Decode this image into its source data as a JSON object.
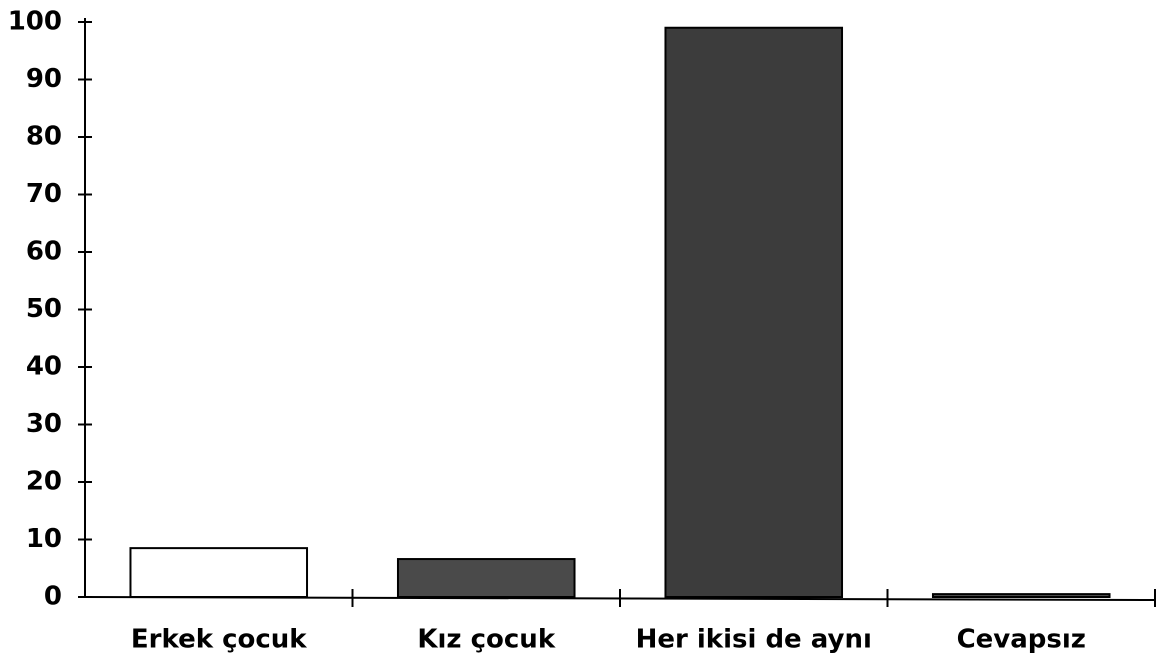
{
  "chart_data": {
    "type": "bar",
    "categories": [
      "Erkek çocuk",
      "Kız çocuk",
      "Her ikisi de aynı",
      "Cevapsız"
    ],
    "values": [
      8.5,
      6.6,
      99,
      0.5
    ],
    "colors": [
      "#ffffff",
      "#4a4a4a",
      "#3c3c3c",
      "#555555"
    ],
    "ylim": [
      0,
      100
    ],
    "yticks": [
      0,
      10,
      20,
      30,
      40,
      50,
      60,
      70,
      80,
      90,
      100
    ],
    "grid": false
  }
}
